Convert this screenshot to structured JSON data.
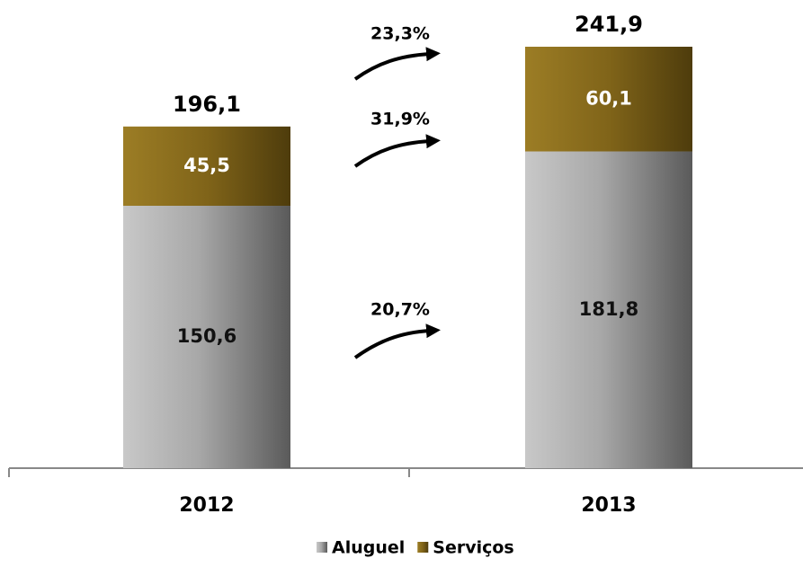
{
  "chart_data": {
    "type": "stacked_bar",
    "categories": [
      "2012",
      "2013"
    ],
    "series": [
      {
        "name": "Aluguel",
        "color": "#9a9a9a",
        "values": [
          150.6,
          181.8
        ],
        "value_labels": [
          "150,6",
          "181,8"
        ]
      },
      {
        "name": "Serviços",
        "color": "#8a6d1e",
        "values": [
          45.5,
          60.1
        ],
        "value_labels": [
          "45,5",
          "60,1"
        ]
      }
    ],
    "totals": {
      "values": [
        196.1,
        241.9
      ],
      "labels": [
        "196,1",
        "241,9"
      ]
    },
    "annotations": [
      "23,3%",
      "31,9%",
      "20,7%"
    ],
    "legend": "bottom"
  }
}
